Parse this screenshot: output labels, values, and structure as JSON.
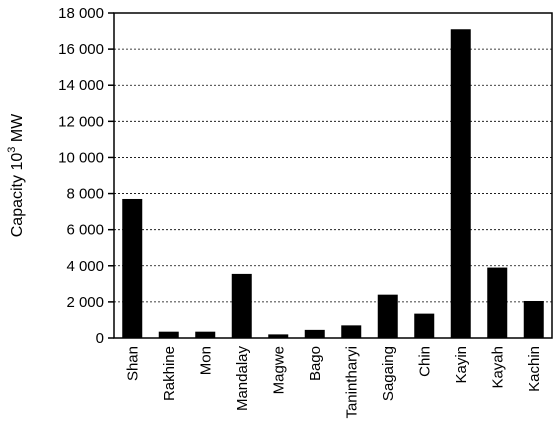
{
  "chart_data": {
    "type": "bar",
    "title": "",
    "xlabel": "",
    "ylabel": "Capacity 10",
    "ylabel_sup": "3",
    "ylabel_unit": " MW",
    "ylim": [
      0,
      18000
    ],
    "yticks": [
      0,
      2000,
      4000,
      6000,
      8000,
      10000,
      12000,
      14000,
      16000,
      18000
    ],
    "ytick_labels": [
      "0",
      "2 000",
      "4 000",
      "6 000",
      "8 000",
      "10 000",
      "12 000",
      "14 000",
      "16 000",
      "18 000"
    ],
    "grid": "horizontal dashed",
    "bar_color": "#000000",
    "categories": [
      "Shan",
      "Rakhine",
      "Mon",
      "Mandalay",
      "Magwe",
      "Bago",
      "Tanintharyi",
      "Sagaing",
      "Chin",
      "Kayin",
      "Kayah",
      "Kachin"
    ],
    "values": [
      7700,
      350,
      350,
      3550,
      200,
      450,
      700,
      2400,
      1350,
      17100,
      3900,
      2050
    ]
  }
}
